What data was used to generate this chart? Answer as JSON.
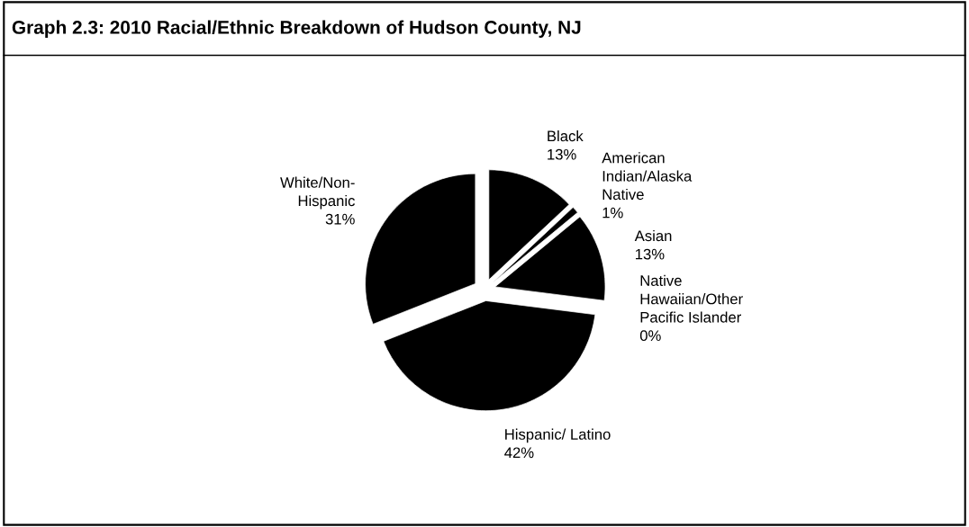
{
  "chart_data": {
    "type": "pie",
    "title": "Graph 2.3: 2010 Racial/Ethnic Breakdown of Hudson County, NJ",
    "categories": [
      "Black",
      "American\nIndian/Alaska\nNative",
      "Asian",
      "Native\nHawaiian/Other\nPacific Islander",
      "Hispanic/ Latino",
      "White/Non-\nHispanic"
    ],
    "values": [
      13,
      1,
      13,
      0,
      42,
      31
    ],
    "value_labels": [
      "13%",
      "1%",
      "13%",
      "0%",
      "42%",
      "31%"
    ],
    "colors": [
      "#000000",
      "#000000",
      "#000000",
      "#000000",
      "#000000",
      "#000000"
    ],
    "legend": false
  }
}
